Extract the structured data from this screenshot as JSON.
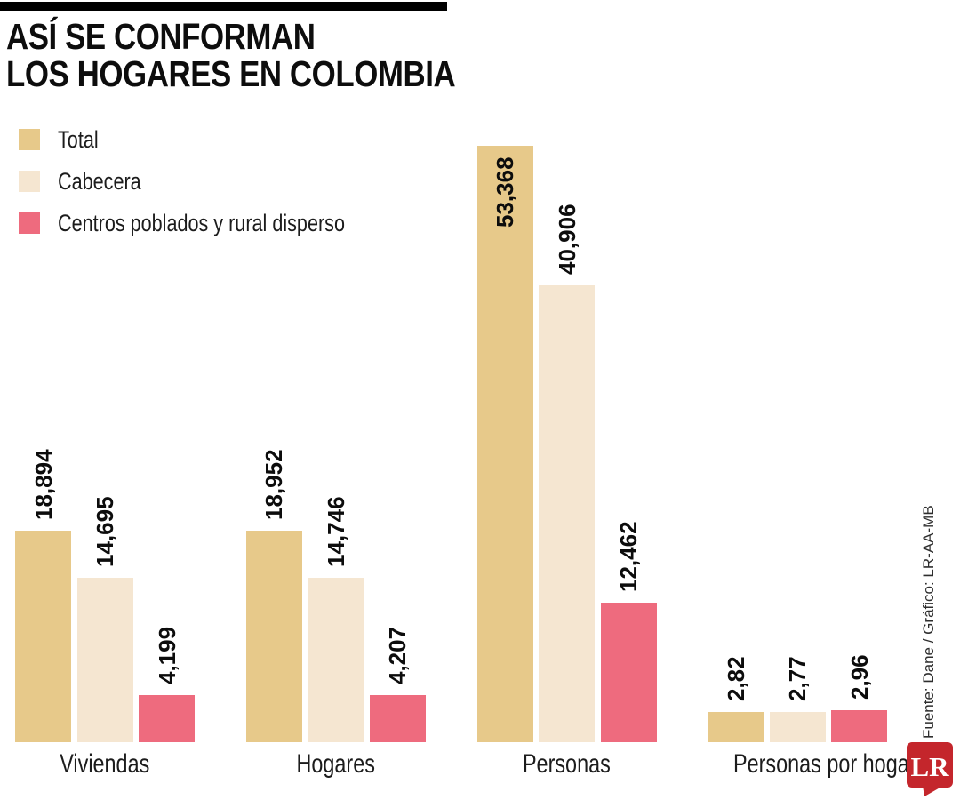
{
  "header": {
    "title_line1": "ASÍ SE CONFORMAN",
    "title_line2": "LOS HOGARES EN COLOMBIA"
  },
  "legend": {
    "items": [
      {
        "label": "Total",
        "color": "#E7C98A"
      },
      {
        "label": "Cabecera",
        "color": "#F5E6D1"
      },
      {
        "label": "Centros poblados y rural disperso",
        "color": "#EE6B7E"
      }
    ]
  },
  "chart_data": {
    "type": "bar",
    "title": "Así se conforman los hogares en Colombia",
    "categories": [
      "Viviendas",
      "Hogares",
      "Personas",
      "Personas por hogar"
    ],
    "series": [
      {
        "name": "Total",
        "color": "#E7C98A",
        "values": [
          18894,
          18952,
          53368,
          2.82
        ],
        "labels": [
          "18,894",
          "18,952",
          "53,368",
          "2,82"
        ]
      },
      {
        "name": "Cabecera",
        "color": "#F5E6D1",
        "values": [
          14695,
          14746,
          40906,
          2.77
        ],
        "labels": [
          "14,695",
          "14,746",
          "40,906",
          "2,77"
        ]
      },
      {
        "name": "Centros poblados y rural disperso",
        "color": "#EE6B7E",
        "values": [
          4199,
          4207,
          12462,
          2.96
        ],
        "labels": [
          "4,199",
          "4,207",
          "12,462",
          "2,96"
        ]
      }
    ],
    "value_labels_rotated": true,
    "axes_visible": false,
    "grid": false,
    "legend_position": "top-left"
  },
  "footer": {
    "source": "Fuente: Dane / Gráfico: LR-AA-MB",
    "logo_text": "LR",
    "logo_color": "#C4262C"
  },
  "colors": {
    "accent_bar": "#000000",
    "title_text": "#0d0d0d",
    "body_text": "#1c1c1c"
  }
}
